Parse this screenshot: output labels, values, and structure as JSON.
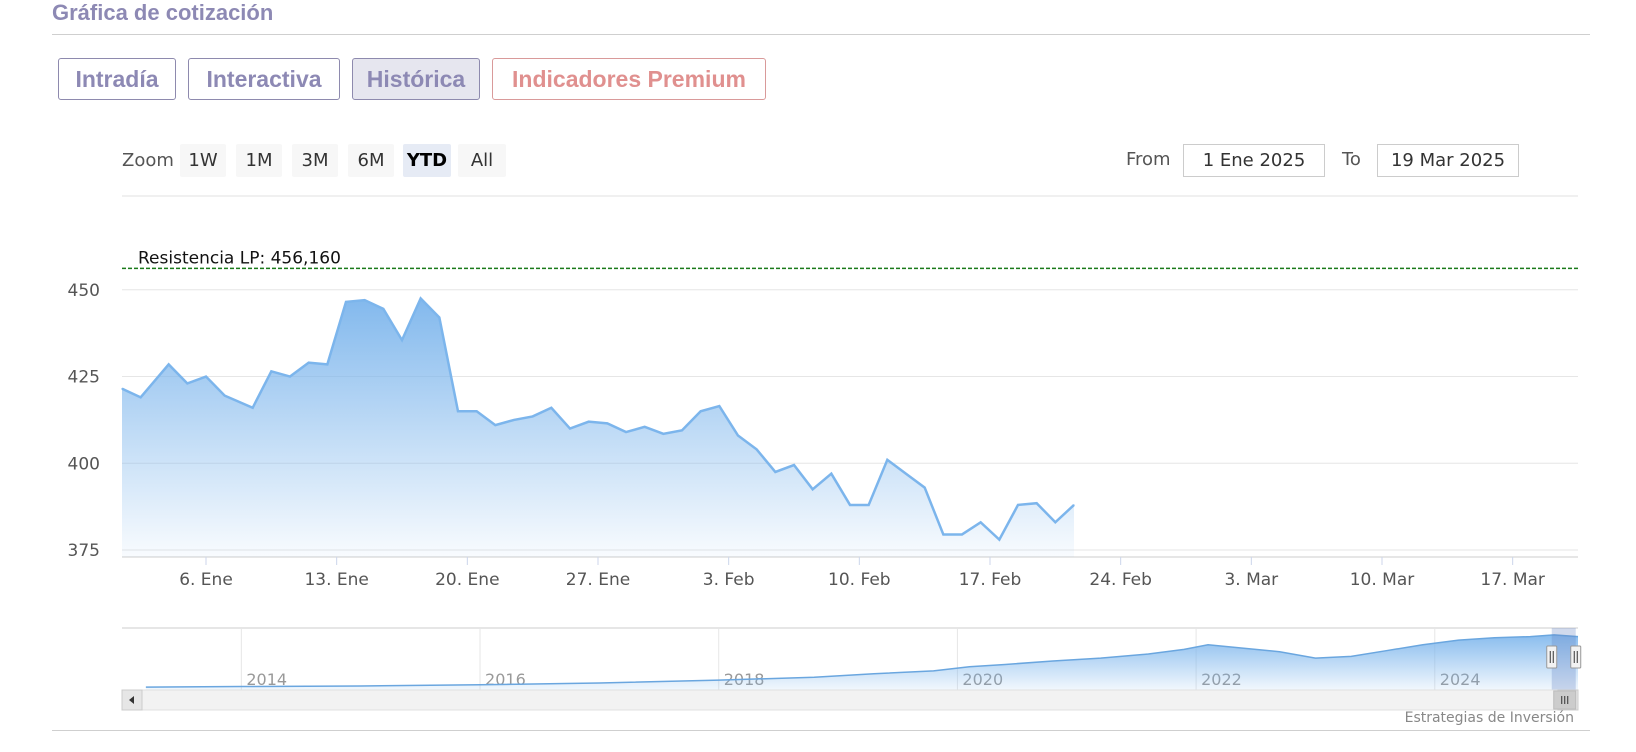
{
  "page_title": "Gráfica de cotización",
  "tabs": [
    {
      "label": "Intradía",
      "active": false
    },
    {
      "label": "Interactiva",
      "active": false
    },
    {
      "label": "Histórica",
      "active": true
    },
    {
      "label": "Indicadores Premium",
      "active": false
    }
  ],
  "zoom": {
    "label": "Zoom",
    "buttons": [
      "1W",
      "1M",
      "3M",
      "6M",
      "YTD",
      "All"
    ],
    "selected": "YTD"
  },
  "range": {
    "from_label": "From",
    "from_value": "1 Ene 2025",
    "to_label": "To",
    "to_value": "19 Mar 2025"
  },
  "credit": "Estrategias de Inversión",
  "colors": {
    "accent": "#8d89b4",
    "premium": "#e0908f",
    "series_line": "#7cb5ec",
    "resistance": "#1a7a1a"
  },
  "chart_data": {
    "type": "area",
    "ylim": [
      373,
      458
    ],
    "yticks": [
      375,
      400,
      425,
      450
    ],
    "x_ticks": [
      {
        "label": "6. Ene",
        "x": 4.5
      },
      {
        "label": "13. Ene",
        "x": 11.5
      },
      {
        "label": "20. Ene",
        "x": 18.5
      },
      {
        "label": "27. Ene",
        "x": 25.5
      },
      {
        "label": "3. Feb",
        "x": 32.5
      },
      {
        "label": "10. Feb",
        "x": 39.5
      },
      {
        "label": "17. Feb",
        "x": 46.5
      },
      {
        "label": "24. Feb",
        "x": 53.5
      },
      {
        "label": "3. Mar",
        "x": 60.5
      },
      {
        "label": "10. Mar",
        "x": 67.5
      },
      {
        "label": "17. Mar",
        "x": 74.5
      }
    ],
    "xlim": [
      0,
      78
    ],
    "points": [
      [
        0,
        421.5
      ],
      [
        1,
        419
      ],
      [
        2.5,
        428.5
      ],
      [
        3.5,
        423
      ],
      [
        4.5,
        425
      ],
      [
        5.5,
        419.5
      ],
      [
        7,
        416
      ],
      [
        8,
        426.5
      ],
      [
        9,
        425
      ],
      [
        10,
        429
      ],
      [
        11,
        428.5
      ],
      [
        12,
        446.5
      ],
      [
        13,
        447
      ],
      [
        14,
        444.5
      ],
      [
        15,
        435.5
      ],
      [
        16,
        447.5
      ],
      [
        17,
        442
      ],
      [
        18,
        415
      ],
      [
        19,
        415
      ],
      [
        20,
        411
      ],
      [
        21,
        412.5
      ],
      [
        22,
        413.5
      ],
      [
        23,
        416
      ],
      [
        24,
        410
      ],
      [
        25,
        412
      ],
      [
        26,
        411.5
      ],
      [
        27,
        409
      ],
      [
        28,
        410.5
      ],
      [
        29,
        408.5
      ],
      [
        30,
        409.5
      ],
      [
        31,
        415
      ],
      [
        32,
        416.5
      ],
      [
        33,
        408
      ],
      [
        34,
        404
      ],
      [
        35,
        397.5
      ],
      [
        36,
        399.5
      ],
      [
        37,
        392.5
      ],
      [
        38,
        397
      ],
      [
        39,
        388
      ],
      [
        40,
        388
      ],
      [
        41,
        401
      ],
      [
        42,
        397
      ],
      [
        43,
        393
      ],
      [
        44,
        379.5
      ],
      [
        45,
        379.5
      ],
      [
        46,
        383
      ],
      [
        47,
        378
      ],
      [
        48,
        388
      ],
      [
        49,
        388.5
      ],
      [
        50,
        383
      ],
      [
        51,
        388
      ]
    ],
    "resistance": {
      "label": "Resistencia LP: 456,160",
      "value": 456.16
    },
    "navigator": {
      "years": [
        "2014",
        "2016",
        "2018",
        "2020",
        "2022",
        "2024"
      ],
      "xlim": [
        2013,
        2025.2
      ],
      "series": [
        [
          2013.2,
          0.05
        ],
        [
          2014,
          0.06
        ],
        [
          2015,
          0.07
        ],
        [
          2016,
          0.09
        ],
        [
          2017,
          0.12
        ],
        [
          2018,
          0.17
        ],
        [
          2018.8,
          0.22
        ],
        [
          2019.3,
          0.28
        ],
        [
          2019.8,
          0.33
        ],
        [
          2020.1,
          0.4
        ],
        [
          2020.4,
          0.44
        ],
        [
          2020.8,
          0.5
        ],
        [
          2021.2,
          0.55
        ],
        [
          2021.6,
          0.62
        ],
        [
          2021.9,
          0.7
        ],
        [
          2022.1,
          0.78
        ],
        [
          2022.4,
          0.72
        ],
        [
          2022.7,
          0.66
        ],
        [
          2023.0,
          0.55
        ],
        [
          2023.3,
          0.58
        ],
        [
          2023.6,
          0.68
        ],
        [
          2023.9,
          0.78
        ],
        [
          2024.2,
          0.86
        ],
        [
          2024.5,
          0.9
        ],
        [
          2024.8,
          0.92
        ],
        [
          2025.0,
          0.95
        ],
        [
          2025.2,
          0.92
        ]
      ],
      "selection": [
        2024.98,
        2025.2
      ]
    }
  }
}
